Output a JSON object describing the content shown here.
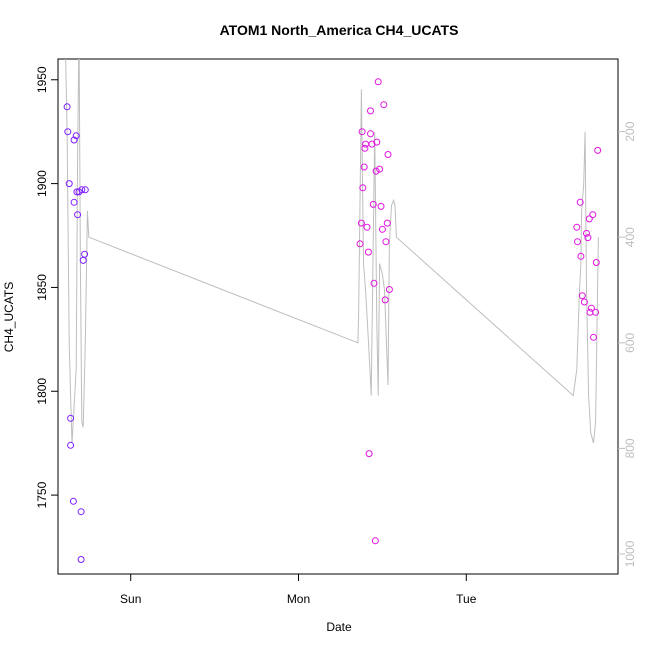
{
  "chart_data": {
    "type": "scatter",
    "title": "ATOM1 North_America CH4_UCATS",
    "xlabel": "Date",
    "ylabel": "CH4_UCATS",
    "x_ticks": [
      "Sun",
      "Mon",
      "Tue"
    ],
    "x_tick_hours": [
      24,
      48,
      72
    ],
    "xlim_hours": [
      13.6,
      93.7
    ],
    "ylim": [
      1712,
      1960
    ],
    "y_ticks": [
      1750,
      1800,
      1850,
      1900,
      1950
    ],
    "right_axis": {
      "ticks": [
        200,
        400,
        600,
        800,
        1000
      ],
      "range_reversed": [
        0,
        1000
      ],
      "color": "#bebebe"
    },
    "colors": {
      "purple": "#7f1fff",
      "magenta": "#e015e0",
      "line": "#bebebe"
    },
    "series": [
      {
        "color": "#7f1fff",
        "points": [
          [
            14.9,
            1937
          ],
          [
            15.0,
            1925
          ],
          [
            15.2,
            1900
          ],
          [
            15.4,
            1787
          ],
          [
            15.4,
            1774
          ],
          [
            15.8,
            1747
          ],
          [
            15.9,
            1921
          ],
          [
            15.9,
            1891
          ],
          [
            16.2,
            1923
          ],
          [
            16.3,
            1896
          ],
          [
            16.4,
            1885
          ],
          [
            16.6,
            1896
          ],
          [
            16.9,
            1742
          ],
          [
            16.9,
            1719
          ],
          [
            17.0,
            1897
          ],
          [
            17.2,
            1863
          ],
          [
            17.4,
            1866
          ],
          [
            17.5,
            1897
          ]
        ]
      },
      {
        "color": "#e015e0",
        "points": [
          [
            56.8,
            1871
          ],
          [
            57.0,
            1881
          ],
          [
            57.1,
            1925
          ],
          [
            57.2,
            1898
          ],
          [
            57.4,
            1908
          ],
          [
            57.5,
            1917
          ],
          [
            57.6,
            1919
          ],
          [
            57.8,
            1879
          ],
          [
            58.0,
            1867
          ],
          [
            58.1,
            1770
          ],
          [
            58.3,
            1924
          ],
          [
            58.3,
            1935
          ],
          [
            58.5,
            1919
          ],
          [
            58.7,
            1890
          ],
          [
            58.8,
            1852
          ],
          [
            59.0,
            1728
          ],
          [
            59.1,
            1906
          ],
          [
            59.2,
            1920
          ],
          [
            59.4,
            1949
          ],
          [
            59.6,
            1907
          ],
          [
            59.8,
            1889
          ],
          [
            60.0,
            1878
          ],
          [
            60.2,
            1938
          ],
          [
            60.4,
            1844
          ],
          [
            60.5,
            1872
          ],
          [
            60.7,
            1881
          ],
          [
            60.8,
            1914
          ],
          [
            61.0,
            1849
          ],
          [
            87.8,
            1879
          ],
          [
            87.9,
            1872
          ],
          [
            88.3,
            1891
          ],
          [
            88.4,
            1865
          ],
          [
            88.6,
            1846
          ],
          [
            88.9,
            1843
          ],
          [
            89.2,
            1876
          ],
          [
            89.4,
            1874
          ],
          [
            89.6,
            1883
          ],
          [
            89.7,
            1838
          ],
          [
            89.9,
            1840
          ],
          [
            90.1,
            1885
          ],
          [
            90.2,
            1826
          ],
          [
            90.5,
            1838
          ],
          [
            90.6,
            1862
          ],
          [
            90.8,
            1916
          ]
        ]
      }
    ],
    "altitude_trace": [
      [
        14.6,
        0
      ],
      [
        14.9,
        200
      ],
      [
        15.2,
        600
      ],
      [
        15.4,
        700
      ],
      [
        15.6,
        790
      ],
      [
        16.2,
        650
      ],
      [
        16.4,
        250
      ],
      [
        16.6,
        0
      ],
      [
        16.8,
        450
      ],
      [
        17.0,
        750
      ],
      [
        17.2,
        760
      ],
      [
        17.5,
        600
      ],
      [
        17.8,
        350
      ],
      [
        18.0,
        400
      ],
      [
        56.5,
        600
      ],
      [
        56.6,
        550
      ],
      [
        57.0,
        120
      ],
      [
        57.3,
        450
      ],
      [
        57.6,
        500
      ],
      [
        58.1,
        620
      ],
      [
        58.4,
        700
      ],
      [
        58.6,
        500
      ],
      [
        58.9,
        200
      ],
      [
        59.2,
        560
      ],
      [
        59.4,
        700
      ],
      [
        59.6,
        450
      ],
      [
        60.0,
        470
      ],
      [
        60.3,
        500
      ],
      [
        60.8,
        680
      ],
      [
        61.0,
        410
      ],
      [
        61.3,
        340
      ],
      [
        61.6,
        330
      ],
      [
        61.8,
        340
      ],
      [
        62.0,
        400
      ],
      [
        87.3,
        700
      ],
      [
        87.8,
        650
      ],
      [
        88.2,
        500
      ],
      [
        88.4,
        450
      ],
      [
        88.5,
        350
      ],
      [
        88.8,
        300
      ],
      [
        89.0,
        200
      ],
      [
        89.2,
        500
      ],
      [
        89.5,
        700
      ],
      [
        89.8,
        770
      ],
      [
        90.2,
        790
      ],
      [
        90.5,
        750
      ],
      [
        90.8,
        480
      ],
      [
        90.9,
        400
      ]
    ]
  }
}
